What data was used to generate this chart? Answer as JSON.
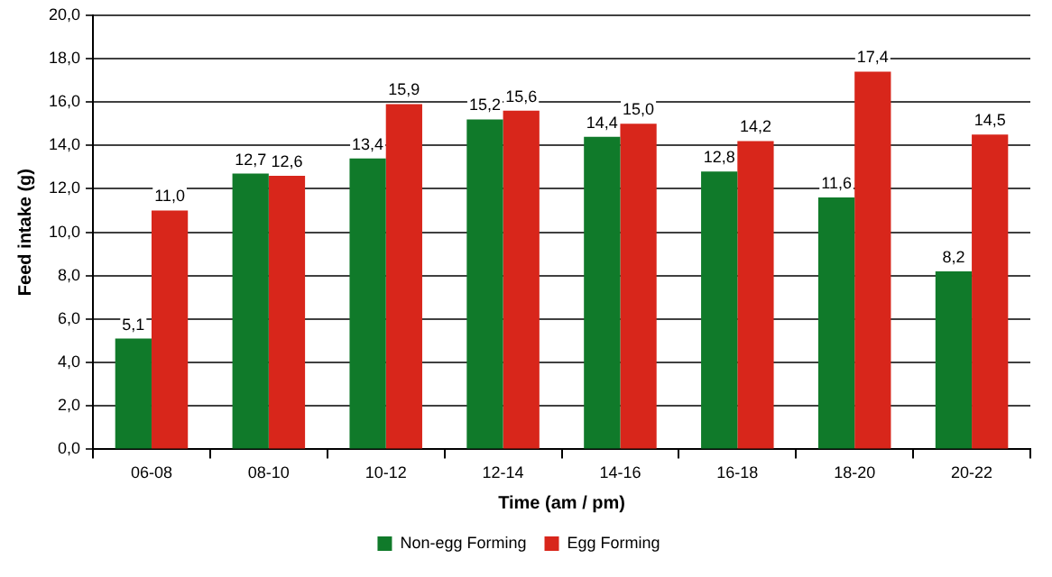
{
  "chart_data": {
    "type": "bar",
    "xlabel": "Time (am / pm)",
    "ylabel": "Feed intake (g)",
    "categories": [
      "06-08",
      "08-10",
      "10-12",
      "12-14",
      "14-16",
      "16-18",
      "18-20",
      "20-22"
    ],
    "series": [
      {
        "name": "Non-egg Forming",
        "color": "#107a2a",
        "values": [
          5.1,
          12.7,
          13.4,
          15.2,
          14.4,
          12.8,
          11.6,
          8.2
        ],
        "value_labels": [
          "5,1",
          "12,7",
          "13,4",
          "15,2",
          "14,4",
          "12,8",
          "11,6",
          "8,2"
        ]
      },
      {
        "name": "Egg Forming",
        "color": "#d8261b",
        "values": [
          11.0,
          12.6,
          15.9,
          15.6,
          15.0,
          14.2,
          17.4,
          14.5
        ],
        "value_labels": [
          "11,0",
          "12,6",
          "15,9",
          "15,6",
          "15,0",
          "14,2",
          "17,4",
          "14,5"
        ]
      }
    ],
    "ylim": [
      0,
      20
    ],
    "yticks": [
      {
        "value": 0,
        "label": "0,0"
      },
      {
        "value": 2,
        "label": "2,0"
      },
      {
        "value": 4,
        "label": "4,0"
      },
      {
        "value": 6,
        "label": "6,0"
      },
      {
        "value": 8,
        "label": "8,0"
      },
      {
        "value": 10,
        "label": "10,0"
      },
      {
        "value": 12,
        "label": "12,0"
      },
      {
        "value": 14,
        "label": "14,0"
      },
      {
        "value": 16,
        "label": "16,0"
      },
      {
        "value": 18,
        "label": "18,0"
      },
      {
        "value": 20,
        "label": "20,0"
      }
    ],
    "grid": "y",
    "legend": "bottom"
  }
}
